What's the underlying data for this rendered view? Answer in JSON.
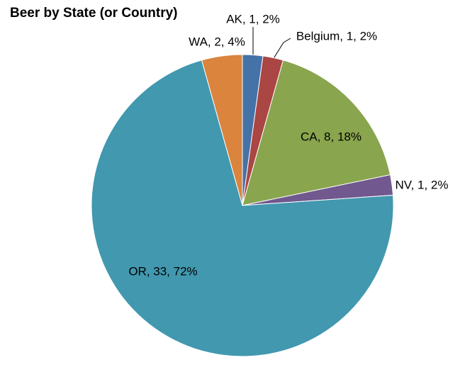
{
  "chart_data": {
    "type": "pie",
    "title": "Beer by State (or Country)",
    "categories": [
      "AK",
      "Belgium",
      "CA",
      "NV",
      "OR",
      "WA"
    ],
    "values": [
      1,
      1,
      8,
      1,
      33,
      2
    ],
    "value_labels": [
      "AK, 1, 2%",
      "Belgium, 1, 2%",
      "CA, 8, 18%",
      "NV, 1, 2%",
      "OR, 33, 72%",
      "WA, 2, 4%"
    ],
    "colors": [
      "#4572a7",
      "#aa4643",
      "#89a54e",
      "#71588f",
      "#4198af",
      "#db843d"
    ]
  }
}
